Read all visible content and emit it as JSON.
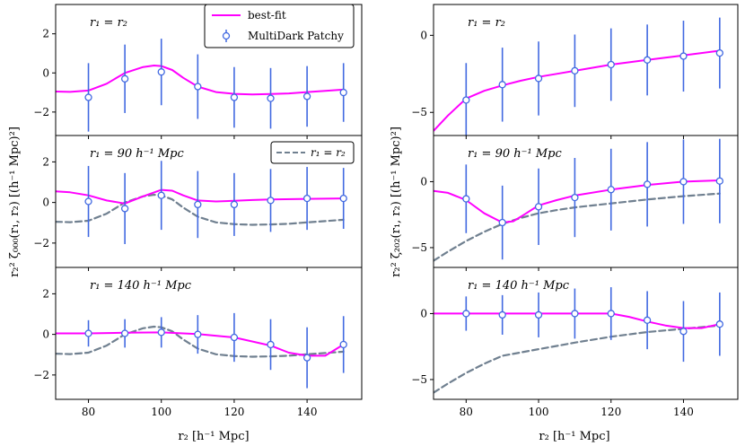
{
  "figure": {
    "xlabel": "r₂  [h⁻¹ Mpc]",
    "left_ylabel": "r₂² ζ₀₀₀(r₁, r₂)  [(h⁻¹ Mpc)²]",
    "right_ylabel": "r₂² ζ₂₀₂(r₁, r₂)  [(h⁻¹ Mpc)²]",
    "legend": {
      "best_fit": "best-fit",
      "patchy": "MultiDark Patchy",
      "r1_eq_r2": "r₁ = r₂"
    },
    "colors": {
      "best_fit": "#ff00ff",
      "reference": "#708090",
      "points": "#4169e1",
      "marker_edge": "#4169e1"
    }
  },
  "chart_data": [
    {
      "type": "line",
      "column": "left",
      "row": 0,
      "label": "r₁ = r₂",
      "xlim": [
        71,
        155
      ],
      "ylim": [
        -3.2,
        3.5
      ],
      "yticks": [
        -2,
        0,
        2
      ],
      "xticks": [
        80,
        100,
        120,
        140
      ],
      "series": [
        {
          "name": "best-fit",
          "x": [
            71,
            75,
            80,
            85,
            90,
            95,
            98,
            100,
            103,
            106,
            110,
            115,
            120,
            125,
            130,
            135,
            140,
            145,
            150
          ],
          "y": [
            -0.95,
            -0.97,
            -0.9,
            -0.55,
            0,
            0.3,
            0.38,
            0.35,
            0.15,
            -0.25,
            -0.7,
            -0.98,
            -1.07,
            -1.1,
            -1.08,
            -1.05,
            -0.98,
            -0.92,
            -0.85
          ]
        }
      ],
      "points": {
        "name": "MultiDark Patchy",
        "x": [
          80,
          90,
          100,
          110,
          120,
          130,
          140,
          150
        ],
        "y": [
          -1.25,
          -0.3,
          0.05,
          -0.7,
          -1.25,
          -1.3,
          -1.2,
          -1.0
        ],
        "err": [
          1.75,
          1.75,
          1.7,
          1.65,
          1.55,
          1.55,
          1.55,
          1.5
        ]
      }
    },
    {
      "type": "line",
      "column": "left",
      "row": 1,
      "label": "r₁ = 90 h⁻¹ Mpc",
      "xlim": [
        71,
        155
      ],
      "ylim": [
        -3.2,
        3.3
      ],
      "yticks": [
        -2,
        0,
        2
      ],
      "xticks": [
        80,
        100,
        120,
        140
      ],
      "series": [
        {
          "name": "best-fit",
          "x": [
            71,
            75,
            80,
            85,
            90,
            95,
            100,
            103,
            106,
            110,
            115,
            120,
            125,
            130,
            140,
            150
          ],
          "y": [
            0.55,
            0.5,
            0.35,
            0.1,
            -0.05,
            0.3,
            0.62,
            0.58,
            0.35,
            0.1,
            0.05,
            0.08,
            0.12,
            0.15,
            0.18,
            0.2
          ]
        },
        {
          "name": "r₁ = r₂",
          "x": [
            71,
            75,
            80,
            85,
            90,
            95,
            98,
            100,
            103,
            106,
            110,
            115,
            120,
            125,
            130,
            135,
            140,
            145,
            150
          ],
          "y": [
            -0.95,
            -0.97,
            -0.9,
            -0.55,
            0,
            0.3,
            0.38,
            0.35,
            0.15,
            -0.25,
            -0.7,
            -0.98,
            -1.07,
            -1.1,
            -1.08,
            -1.05,
            -0.98,
            -0.92,
            -0.85
          ]
        }
      ],
      "points": {
        "name": "MultiDark Patchy",
        "x": [
          80,
          90,
          100,
          110,
          120,
          130,
          140,
          150
        ],
        "y": [
          0.05,
          -0.3,
          0.35,
          -0.1,
          -0.1,
          0.1,
          0.2,
          0.2
        ],
        "err": [
          1.75,
          1.75,
          1.7,
          1.65,
          1.55,
          1.55,
          1.55,
          1.5
        ]
      }
    },
    {
      "type": "line",
      "column": "left",
      "row": 2,
      "label": "r₁ = 140 h⁻¹ Mpc",
      "xlim": [
        71,
        155
      ],
      "ylim": [
        -3.2,
        3.3
      ],
      "yticks": [
        -2,
        0,
        2
      ],
      "xticks": [
        80,
        100,
        120,
        140
      ],
      "series": [
        {
          "name": "best-fit",
          "x": [
            71,
            80,
            90,
            100,
            110,
            120,
            130,
            135,
            140,
            145,
            150
          ],
          "y": [
            0.05,
            0.05,
            0.08,
            0.1,
            0.02,
            -0.15,
            -0.55,
            -0.9,
            -1.05,
            -1.05,
            -0.5
          ]
        },
        {
          "name": "r₁ = r₂",
          "x": [
            71,
            75,
            80,
            85,
            90,
            95,
            98,
            100,
            103,
            106,
            110,
            115,
            120,
            125,
            130,
            135,
            140,
            145,
            150
          ],
          "y": [
            -0.95,
            -0.97,
            -0.9,
            -0.55,
            0,
            0.3,
            0.38,
            0.35,
            0.15,
            -0.25,
            -0.7,
            -0.98,
            -1.07,
            -1.1,
            -1.08,
            -1.05,
            -0.98,
            -0.92,
            -0.85
          ]
        }
      ],
      "points": {
        "name": "MultiDark Patchy",
        "x": [
          80,
          90,
          100,
          110,
          120,
          130,
          140,
          150
        ],
        "y": [
          0.05,
          0.05,
          0.1,
          0.0,
          -0.15,
          -0.5,
          -1.15,
          -0.5
        ],
        "err": [
          0.65,
          0.7,
          0.75,
          0.95,
          1.2,
          1.25,
          1.5,
          1.4
        ]
      }
    },
    {
      "type": "line",
      "column": "right",
      "row": 0,
      "label": "r₁ = r₂",
      "xlim": [
        71,
        155
      ],
      "ylim": [
        -6.5,
        2.0
      ],
      "yticks": [
        -5,
        0
      ],
      "xticks": [
        80,
        100,
        120,
        140
      ],
      "series": [
        {
          "name": "best-fit",
          "x": [
            71,
            75,
            80,
            85,
            90,
            95,
            100,
            105,
            110,
            120,
            130,
            140,
            150
          ],
          "y": [
            -6.2,
            -5.2,
            -4.1,
            -3.6,
            -3.25,
            -2.95,
            -2.7,
            -2.5,
            -2.3,
            -1.9,
            -1.6,
            -1.3,
            -1.0
          ]
        }
      ],
      "points": {
        "name": "MultiDark Patchy",
        "x": [
          80,
          90,
          100,
          110,
          120,
          130,
          140,
          150
        ],
        "y": [
          -4.2,
          -3.2,
          -2.8,
          -2.3,
          -1.9,
          -1.6,
          -1.35,
          -1.15
        ],
        "err": [
          2.4,
          2.4,
          2.4,
          2.35,
          2.35,
          2.3,
          2.3,
          2.3
        ]
      }
    },
    {
      "type": "line",
      "column": "right",
      "row": 1,
      "label": "r₁ = 90 h⁻¹ Mpc",
      "xlim": [
        71,
        155
      ],
      "ylim": [
        -6.5,
        3.5
      ],
      "yticks": [
        -5,
        0
      ],
      "xticks": [
        80,
        100,
        120,
        140
      ],
      "series": [
        {
          "name": "best-fit",
          "x": [
            71,
            75,
            80,
            85,
            90,
            93,
            96,
            100,
            105,
            110,
            120,
            130,
            140,
            150
          ],
          "y": [
            -0.7,
            -0.85,
            -1.4,
            -2.4,
            -3.1,
            -3.0,
            -2.5,
            -1.8,
            -1.4,
            -1.05,
            -0.6,
            -0.25,
            0,
            0.1
          ]
        },
        {
          "name": "r₁ = r₂",
          "x": [
            71,
            75,
            80,
            85,
            90,
            95,
            100,
            105,
            110,
            120,
            130,
            140,
            150
          ],
          "y": [
            -6.0,
            -5.3,
            -4.5,
            -3.8,
            -3.2,
            -2.75,
            -2.4,
            -2.15,
            -1.95,
            -1.65,
            -1.35,
            -1.1,
            -0.9
          ]
        }
      ],
      "points": {
        "name": "MultiDark Patchy",
        "x": [
          80,
          90,
          100,
          110,
          120,
          130,
          140,
          150
        ],
        "y": [
          -1.3,
          -3.1,
          -1.9,
          -1.2,
          -0.6,
          -0.2,
          0.0,
          0.05
        ],
        "err": [
          2.6,
          2.8,
          2.9,
          3.0,
          3.1,
          3.2,
          3.2,
          3.2
        ]
      }
    },
    {
      "type": "line",
      "column": "right",
      "row": 2,
      "label": "r₁ = 140 h⁻¹ Mpc",
      "xlim": [
        71,
        155
      ],
      "ylim": [
        -6.5,
        3.5
      ],
      "yticks": [
        -5,
        0
      ],
      "xticks": [
        80,
        100,
        120,
        140
      ],
      "series": [
        {
          "name": "best-fit",
          "x": [
            71,
            80,
            90,
            100,
            110,
            120,
            125,
            130,
            135,
            140,
            145,
            150
          ],
          "y": [
            0,
            0,
            0,
            0,
            0,
            0,
            -0.25,
            -0.6,
            -0.9,
            -1.1,
            -1.1,
            -0.8
          ]
        },
        {
          "name": "r₁ = r₂",
          "x": [
            71,
            75,
            80,
            85,
            90,
            95,
            100,
            105,
            110,
            120,
            130,
            140,
            150
          ],
          "y": [
            -6.0,
            -5.3,
            -4.5,
            -3.8,
            -3.2,
            -2.95,
            -2.7,
            -2.45,
            -2.2,
            -1.75,
            -1.4,
            -1.15,
            -0.9
          ]
        }
      ],
      "points": {
        "name": "MultiDark Patchy",
        "x": [
          80,
          90,
          100,
          110,
          120,
          130,
          140,
          150
        ],
        "y": [
          0,
          -0.1,
          -0.1,
          0,
          0,
          -0.5,
          -1.35,
          -0.8
        ],
        "err": [
          1.3,
          1.5,
          1.7,
          1.9,
          2.0,
          2.2,
          2.3,
          2.4
        ]
      }
    }
  ]
}
